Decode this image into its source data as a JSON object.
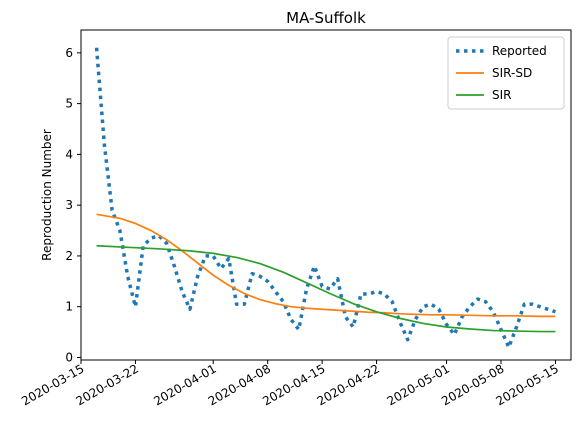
{
  "chart_data": {
    "type": "line",
    "title": "MA-Suffolk",
    "xlabel": "",
    "ylabel": "Reproduction Number",
    "x_axis_type": "date",
    "xlim": [
      "2020-03-15",
      "2020-05-17"
    ],
    "ylim": [
      -0.05,
      6.45
    ],
    "x_ticks": [
      "2020-03-15",
      "2020-03-22",
      "2020-04-01",
      "2020-04-08",
      "2020-04-15",
      "2020-04-22",
      "2020-05-01",
      "2020-05-08",
      "2020-05-15"
    ],
    "y_ticks": [
      0,
      1,
      2,
      3,
      4,
      5,
      6
    ],
    "grid": false,
    "legend": {
      "position": "top-right"
    },
    "series": [
      {
        "name": "Reported",
        "style": "dotted",
        "color": "#1f77b4",
        "x": [
          "2020-03-17",
          "2020-03-18",
          "2020-03-19",
          "2020-03-20",
          "2020-03-21",
          "2020-03-22",
          "2020-03-23",
          "2020-03-24",
          "2020-03-25",
          "2020-03-26",
          "2020-03-27",
          "2020-03-28",
          "2020-03-29",
          "2020-03-30",
          "2020-03-31",
          "2020-04-01",
          "2020-04-02",
          "2020-04-03",
          "2020-04-04",
          "2020-04-05",
          "2020-04-06",
          "2020-04-07",
          "2020-04-08",
          "2020-04-09",
          "2020-04-10",
          "2020-04-11",
          "2020-04-12",
          "2020-04-13",
          "2020-04-14",
          "2020-04-15",
          "2020-04-16",
          "2020-04-17",
          "2020-04-18",
          "2020-04-19",
          "2020-04-20",
          "2020-04-21",
          "2020-04-22",
          "2020-04-23",
          "2020-04-24",
          "2020-04-25",
          "2020-04-26",
          "2020-04-27",
          "2020-04-28",
          "2020-04-29",
          "2020-04-30",
          "2020-05-01",
          "2020-05-02",
          "2020-05-03",
          "2020-05-04",
          "2020-05-05",
          "2020-05-06",
          "2020-05-07",
          "2020-05-08",
          "2020-05-09",
          "2020-05-10",
          "2020-05-11",
          "2020-05-12",
          "2020-05-13",
          "2020-05-14",
          "2020-05-15"
        ],
        "values": [
          6.1,
          4.2,
          2.9,
          2.5,
          1.6,
          1.0,
          2.2,
          2.35,
          2.4,
          2.25,
          1.8,
          1.3,
          0.95,
          1.6,
          2.0,
          2.0,
          1.75,
          1.95,
          1.05,
          1.05,
          1.65,
          1.6,
          1.5,
          1.3,
          1.1,
          0.75,
          0.55,
          1.35,
          1.8,
          1.4,
          1.35,
          1.55,
          0.8,
          0.6,
          1.25,
          1.25,
          1.3,
          1.25,
          1.1,
          0.7,
          0.35,
          0.75,
          1.0,
          1.05,
          0.95,
          0.65,
          0.45,
          0.8,
          1.0,
          1.15,
          1.1,
          0.9,
          0.55,
          0.2,
          0.6,
          1.05,
          1.05,
          1.0,
          0.95,
          0.9
        ]
      },
      {
        "name": "SIR-SD",
        "style": "solid",
        "color": "#ff7f0e",
        "x": [
          "2020-03-17",
          "2020-03-20",
          "2020-03-22",
          "2020-03-24",
          "2020-03-26",
          "2020-03-28",
          "2020-03-30",
          "2020-04-01",
          "2020-04-03",
          "2020-04-05",
          "2020-04-07",
          "2020-04-09",
          "2020-04-11",
          "2020-04-13",
          "2020-04-15",
          "2020-04-17",
          "2020-04-19",
          "2020-04-21",
          "2020-04-23",
          "2020-04-25",
          "2020-04-27",
          "2020-04-29",
          "2020-05-01",
          "2020-05-04",
          "2020-05-07",
          "2020-05-10",
          "2020-05-13",
          "2020-05-15"
        ],
        "values": [
          2.82,
          2.74,
          2.64,
          2.5,
          2.32,
          2.1,
          1.86,
          1.62,
          1.42,
          1.26,
          1.14,
          1.06,
          1.0,
          0.97,
          0.95,
          0.93,
          0.91,
          0.89,
          0.88,
          0.86,
          0.85,
          0.84,
          0.84,
          0.83,
          0.82,
          0.82,
          0.81,
          0.81
        ]
      },
      {
        "name": "SIR",
        "style": "solid",
        "color": "#2ca02c",
        "x": [
          "2020-03-17",
          "2020-03-21",
          "2020-03-25",
          "2020-03-29",
          "2020-04-01",
          "2020-04-04",
          "2020-04-07",
          "2020-04-10",
          "2020-04-13",
          "2020-04-16",
          "2020-04-19",
          "2020-04-22",
          "2020-04-25",
          "2020-04-28",
          "2020-05-01",
          "2020-05-04",
          "2020-05-07",
          "2020-05-10",
          "2020-05-13",
          "2020-05-15"
        ],
        "values": [
          2.2,
          2.17,
          2.14,
          2.1,
          2.05,
          1.97,
          1.85,
          1.68,
          1.47,
          1.26,
          1.06,
          0.9,
          0.77,
          0.67,
          0.6,
          0.56,
          0.53,
          0.52,
          0.51,
          0.51
        ]
      }
    ]
  }
}
